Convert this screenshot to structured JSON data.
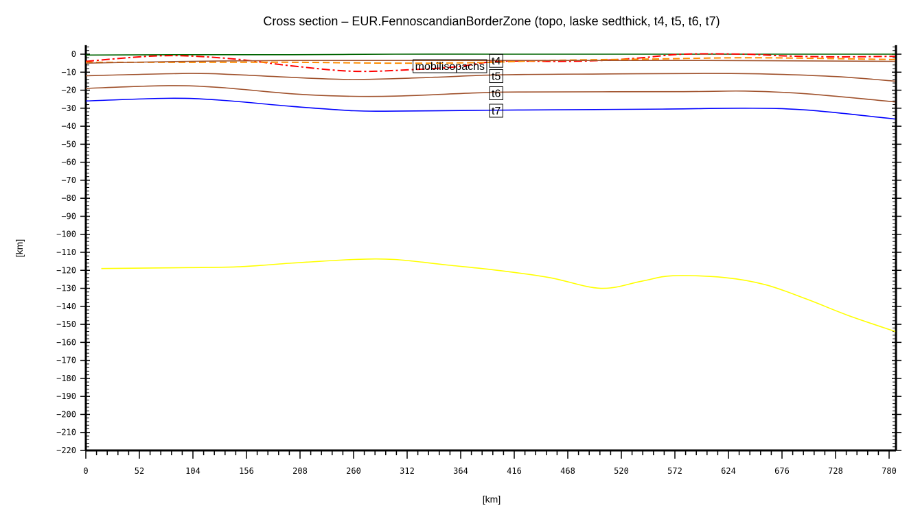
{
  "chart_data": {
    "type": "line",
    "title": "Cross section – EUR.FennoscandianBorderZone (topo, laske sedthick, t4, t5, t6, t7)",
    "xlabel": "[km]",
    "ylabel": "[km]",
    "xlim": [
      0,
      786
    ],
    "ylim": [
      -220,
      5
    ],
    "xticks": [
      0,
      52,
      104,
      156,
      208,
      260,
      312,
      364,
      416,
      468,
      520,
      572,
      624,
      676,
      728,
      780
    ],
    "yticks": [
      0,
      -10,
      -20,
      -30,
      -40,
      -50,
      -60,
      -70,
      -80,
      -90,
      -100,
      -110,
      -120,
      -130,
      -140,
      -150,
      -160,
      -170,
      -180,
      -190,
      -200,
      -210,
      -220
    ],
    "grid": false,
    "series": [
      {
        "key": "topo",
        "color": "#006400",
        "style": "solid",
        "x": [
          0,
          100,
          200,
          300,
          400,
          500,
          600,
          700,
          786
        ],
        "y": [
          -0.5,
          -0.3,
          -0.3,
          0,
          0,
          0,
          0,
          0,
          0
        ]
      },
      {
        "key": "laske",
        "color": "#ff0000",
        "style": "dashdot",
        "x": [
          0,
          60,
          100,
          150,
          200,
          260,
          320,
          360,
          400,
          460,
          500,
          540,
          580,
          640,
          680,
          730,
          786
        ],
        "y": [
          -4,
          -1.2,
          -1,
          -3,
          -6.5,
          -9.5,
          -8.5,
          -7,
          -4,
          -4,
          -3.5,
          -2,
          0,
          0,
          -1,
          -1.5,
          -1.2
        ]
      },
      {
        "key": "sedthick",
        "color": "#ff8c00",
        "style": "dashed",
        "x": [
          0,
          100,
          200,
          300,
          380,
          450,
          550,
          650,
          786
        ],
        "y": [
          -4.5,
          -4.5,
          -4.5,
          -5,
          -4.7,
          -3.5,
          -2.7,
          -2,
          -3
        ]
      },
      {
        "key": "t4",
        "color": "#a0522d",
        "style": "solid",
        "x": [
          0,
          100,
          200,
          400,
          600,
          786
        ],
        "y": [
          -5,
          -4,
          -3.5,
          -3.5,
          -3.5,
          -4
        ]
      },
      {
        "key": "t5",
        "color": "#a0522d",
        "style": "solid",
        "x": [
          0,
          100,
          150,
          250,
          330,
          400,
          500,
          600,
          660,
          730,
          786
        ],
        "y": [
          -12,
          -10.7,
          -11.5,
          -14,
          -13,
          -11.5,
          -11,
          -10.7,
          -11,
          -12.5,
          -15
        ]
      },
      {
        "key": "t6",
        "color": "#a0522d",
        "style": "solid",
        "x": [
          0,
          80,
          130,
          200,
          250,
          300,
          380,
          420,
          580,
          640,
          700,
          786
        ],
        "y": [
          -19,
          -17.5,
          -18.5,
          -22,
          -23.3,
          -23.3,
          -21.5,
          -21,
          -20.8,
          -20.5,
          -22,
          -26.5
        ]
      },
      {
        "key": "t7",
        "color": "#0000ff",
        "style": "solid",
        "x": [
          0,
          80,
          130,
          200,
          260,
          300,
          380,
          420,
          560,
          640,
          700,
          786
        ],
        "y": [
          -26,
          -24.5,
          -25.5,
          -29,
          -31.4,
          -31.6,
          -31.2,
          -31,
          -30.5,
          -30,
          -31,
          -36
        ]
      },
      {
        "key": "lab",
        "color": "#ffff00",
        "style": "solid",
        "x": [
          15,
          100,
          150,
          200,
          260,
          300,
          350,
          400,
          450,
          500,
          540,
          570,
          620,
          660,
          700,
          740,
          786
        ],
        "y": [
          -119,
          -118.5,
          -118,
          -116,
          -114,
          -114,
          -117,
          -120,
          -124,
          -130,
          -126,
          -123,
          -124,
          -128,
          -136,
          -145,
          -154
        ]
      }
    ],
    "annotations": [
      {
        "text": "t4",
        "x": 394,
        "y": -3.5
      },
      {
        "text": "mobilisopachs",
        "x": 375,
        "y": -6.5
      },
      {
        "text": "t5",
        "x": 394,
        "y": -12
      },
      {
        "text": "t6",
        "x": 394,
        "y": -21.5
      },
      {
        "text": "t7",
        "x": 394,
        "y": -31.2
      }
    ]
  }
}
